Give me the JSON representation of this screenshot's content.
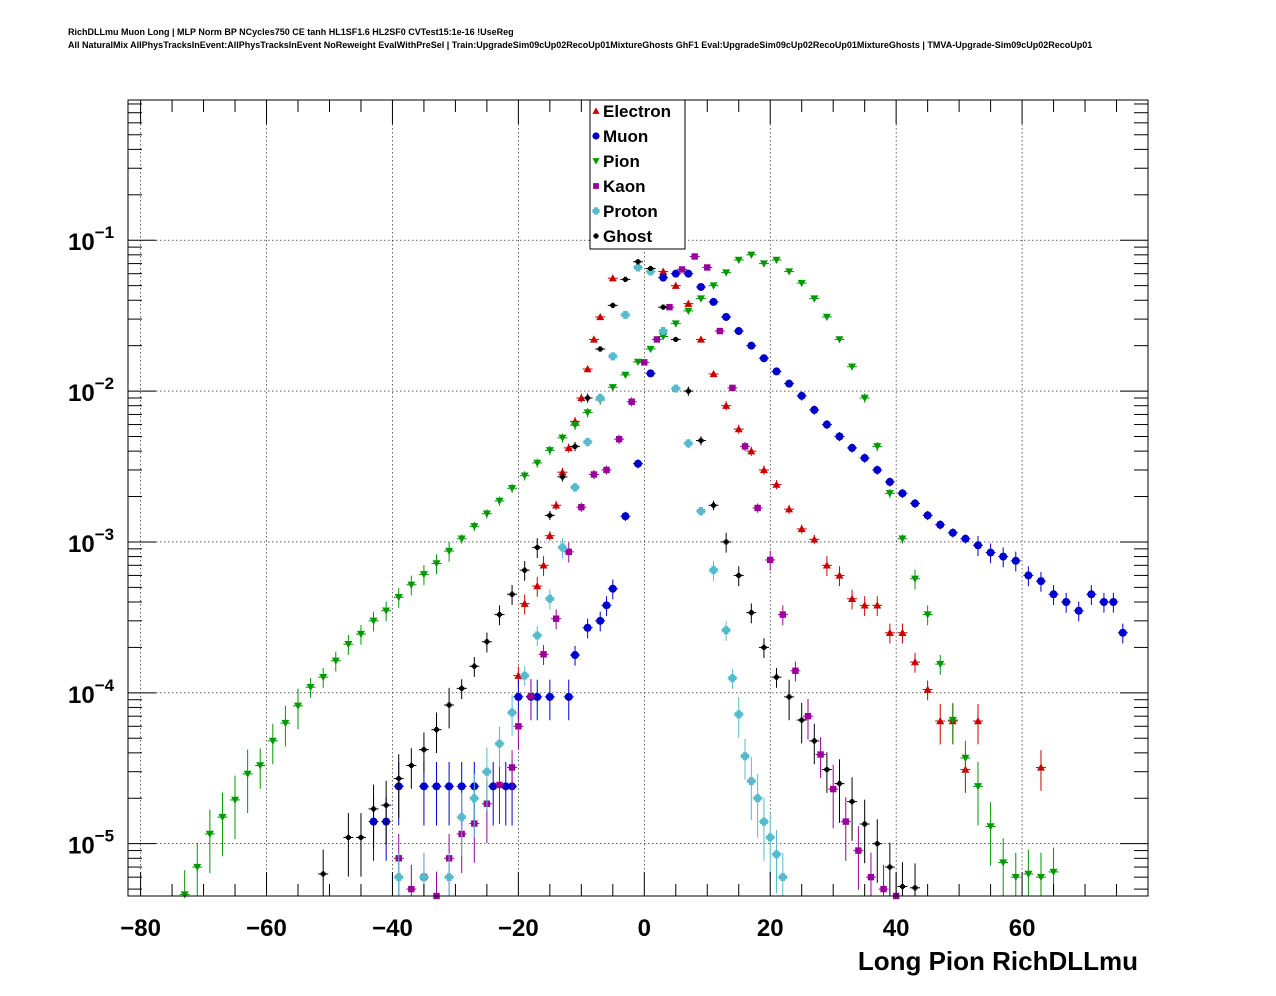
{
  "title_line1": "RichDLLmu Muon Long | MLP Norm BP NCycles750 CE tanh HL1SF1.6 HL2SF0 CVTest15:1e-16 !UseReg",
  "title_line2": "All NaturalMix AllPhysTracksInEvent:AllPhysTracksInEvent NoReweight EvalWithPreSel | Train:UpgradeSim09cUp02RecoUp01MixtureGhosts GhF1 Eval:UpgradeSim09cUp02RecoUp01MixtureGhosts | TMVA-Upgrade-Sim09cUp02RecoUp01",
  "chart_data": {
    "type": "scatter",
    "xlabel": "Long Pion RichDLLmu",
    "ylabel": "",
    "xlim": [
      -82,
      80
    ],
    "ylim": [
      4.5e-06,
      0.85
    ],
    "yscale": "log",
    "grid": true,
    "legend_position": "top-center",
    "x_ticks": [
      -80,
      -60,
      -40,
      -20,
      0,
      20,
      40,
      60
    ],
    "x_tick_labels": [
      "−80",
      "−60",
      "−40",
      "−20",
      "0",
      "20",
      "40",
      "60"
    ],
    "y_ticks": [
      1e-05,
      0.0001,
      0.001,
      0.01,
      0.1
    ],
    "y_tick_labels": [
      {
        "base": "10",
        "exp": "−5"
      },
      {
        "base": "10",
        "exp": "−4"
      },
      {
        "base": "10",
        "exp": "−3"
      },
      {
        "base": "10",
        "exp": "−2"
      },
      {
        "base": "10",
        "exp": "−1"
      }
    ],
    "series": [
      {
        "name": "Electron",
        "marker": "triangle-up",
        "color": "#cc0000",
        "points": [
          [
            -20,
            0.00013
          ],
          [
            -19,
            0.00039
          ],
          [
            -17,
            0.00051
          ],
          [
            -16,
            0.0007
          ],
          [
            -15,
            0.0011
          ],
          [
            -14,
            0.00175
          ],
          [
            -13,
            0.0029
          ],
          [
            -12,
            0.0042
          ],
          [
            -11,
            0.0063
          ],
          [
            -10,
            0.009
          ],
          [
            -9,
            0.014
          ],
          [
            -8,
            0.022
          ],
          [
            -7,
            0.031
          ],
          [
            -5,
            0.056
          ],
          [
            3,
            0.062
          ],
          [
            5,
            0.05
          ],
          [
            7,
            0.038
          ],
          [
            9,
            0.022
          ],
          [
            11,
            0.013
          ],
          [
            13,
            0.008
          ],
          [
            15,
            0.0056
          ],
          [
            17,
            0.004
          ],
          [
            19,
            0.003
          ],
          [
            21,
            0.0024
          ],
          [
            23,
            0.00165
          ],
          [
            25,
            0.00122
          ],
          [
            27,
            0.00104
          ],
          [
            29,
            0.0007
          ],
          [
            31,
            0.0006
          ],
          [
            33,
            0.00042
          ],
          [
            35,
            0.00038
          ],
          [
            37,
            0.00038
          ],
          [
            39,
            0.00025
          ],
          [
            41,
            0.00025
          ],
          [
            43,
            0.00016
          ],
          [
            45,
            0.000105
          ],
          [
            47,
            6.5e-05
          ],
          [
            49,
            6.5e-05
          ],
          [
            51,
            3.1e-05
          ],
          [
            53,
            6.5e-05
          ],
          [
            63,
            3.2e-05
          ]
        ]
      },
      {
        "name": "Muon",
        "marker": "circle",
        "color": "#0000cc",
        "points": [
          [
            -43,
            1.4e-05
          ],
          [
            -41,
            1.4e-05
          ],
          [
            -39,
            2.4e-05
          ],
          [
            -35,
            2.4e-05
          ],
          [
            -33,
            2.4e-05
          ],
          [
            -31,
            2.4e-05
          ],
          [
            -29,
            2.4e-05
          ],
          [
            -27,
            2.4e-05
          ],
          [
            -24,
            2.4e-05
          ],
          [
            -22,
            2.4e-05
          ],
          [
            -21,
            2.4e-05
          ],
          [
            -20,
            9.4e-05
          ],
          [
            -18,
            9.4e-05
          ],
          [
            -17,
            9.4e-05
          ],
          [
            -15,
            9.4e-05
          ],
          [
            -12,
            9.4e-05
          ],
          [
            -11,
            0.000178
          ],
          [
            -9,
            0.00027
          ],
          [
            -7,
            0.0003
          ],
          [
            -6,
            0.00038
          ],
          [
            -5,
            0.00049
          ],
          [
            -3,
            0.00148
          ],
          [
            -1,
            0.0033
          ],
          [
            1,
            0.0131
          ],
          [
            3,
            0.0565
          ],
          [
            5,
            0.06
          ],
          [
            7,
            0.06
          ],
          [
            9,
            0.049
          ],
          [
            11,
            0.039
          ],
          [
            13,
            0.031
          ],
          [
            15,
            0.025
          ],
          [
            17,
            0.02
          ],
          [
            19,
            0.0165
          ],
          [
            21,
            0.0135
          ],
          [
            23,
            0.0112
          ],
          [
            25,
            0.0093
          ],
          [
            27,
            0.0075
          ],
          [
            29,
            0.006
          ],
          [
            31,
            0.005
          ],
          [
            33,
            0.0042
          ],
          [
            35,
            0.0036
          ],
          [
            37,
            0.003
          ],
          [
            39,
            0.0025
          ],
          [
            41,
            0.0021
          ],
          [
            43,
            0.0018
          ],
          [
            45,
            0.0015
          ],
          [
            47,
            0.0013
          ],
          [
            49,
            0.00115
          ],
          [
            51,
            0.00105
          ],
          [
            53,
            0.00095
          ],
          [
            55,
            0.00085
          ],
          [
            57,
            0.0008
          ],
          [
            59,
            0.00075
          ],
          [
            61,
            0.0006
          ],
          [
            63,
            0.00055
          ],
          [
            65,
            0.00045
          ],
          [
            67,
            0.0004
          ],
          [
            69,
            0.00035
          ],
          [
            71,
            0.00045
          ],
          [
            73,
            0.0004
          ],
          [
            74.5,
            0.0004
          ],
          [
            76,
            0.00025
          ]
        ]
      },
      {
        "name": "Pion",
        "marker": "triangle-down",
        "color": "#009900",
        "points": [
          [
            -73,
            4.6e-06
          ],
          [
            -71,
            7e-06
          ],
          [
            -69,
            1.16e-05
          ],
          [
            -67,
            1.5e-05
          ],
          [
            -65,
            1.95e-05
          ],
          [
            -63,
            2.9e-05
          ],
          [
            -61,
            3.3e-05
          ],
          [
            -59,
            4.8e-05
          ],
          [
            -57,
            6.3e-05
          ],
          [
            -55,
            8.2e-05
          ],
          [
            -53,
            0.000109
          ],
          [
            -51,
            0.000127
          ],
          [
            -49,
            0.000163
          ],
          [
            -47,
            0.00021
          ],
          [
            -45,
            0.000245
          ],
          [
            -43,
            0.0003
          ],
          [
            -41,
            0.00035
          ],
          [
            -39,
            0.00043
          ],
          [
            -37,
            0.00052
          ],
          [
            -35,
            0.00061
          ],
          [
            -33,
            0.00072
          ],
          [
            -31,
            0.00087
          ],
          [
            -29,
            0.00105
          ],
          [
            -27,
            0.00127
          ],
          [
            -25,
            0.00154
          ],
          [
            -23,
            0.00187
          ],
          [
            -21,
            0.00227
          ],
          [
            -19,
            0.00275
          ],
          [
            -17,
            0.00334
          ],
          [
            -15,
            0.00405
          ],
          [
            -13,
            0.0049
          ],
          [
            -11,
            0.00594
          ],
          [
            -9,
            0.0072
          ],
          [
            -7,
            0.00873
          ],
          [
            -5,
            0.0106
          ],
          [
            -3,
            0.0128
          ],
          [
            -1,
            0.0156
          ],
          [
            1,
            0.019
          ],
          [
            3,
            0.023
          ],
          [
            5,
            0.028
          ],
          [
            7,
            0.034
          ],
          [
            9,
            0.041
          ],
          [
            11,
            0.05
          ],
          [
            13,
            0.061
          ],
          [
            15,
            0.074
          ],
          [
            17,
            0.08
          ],
          [
            19,
            0.07
          ],
          [
            21,
            0.074
          ],
          [
            23,
            0.062
          ],
          [
            25,
            0.052
          ],
          [
            27,
            0.041
          ],
          [
            29,
            0.031
          ],
          [
            31,
            0.022
          ],
          [
            33,
            0.0145
          ],
          [
            35,
            0.009
          ],
          [
            37,
            0.0043
          ],
          [
            39,
            0.0021
          ],
          [
            41,
            0.00105
          ],
          [
            43,
            0.00057
          ],
          [
            45,
            0.00033
          ],
          [
            47,
            0.000155
          ],
          [
            49,
            6.6e-05
          ],
          [
            51,
            3.7e-05
          ],
          [
            53,
            2.4e-05
          ],
          [
            55,
            1.3e-05
          ],
          [
            57,
            7.5e-06
          ],
          [
            59,
            6e-06
          ],
          [
            61,
            6.3e-06
          ],
          [
            63,
            6e-06
          ],
          [
            65,
            6.5e-06
          ]
        ]
      },
      {
        "name": "Kaon",
        "marker": "square",
        "color": "#990099",
        "points": [
          [
            -39,
            8e-06
          ],
          [
            -37,
            5e-06
          ],
          [
            -35,
            6e-06
          ],
          [
            -33,
            4.5e-06
          ],
          [
            -31,
            8e-06
          ],
          [
            -29,
            1.16e-05
          ],
          [
            -27,
            1.36e-05
          ],
          [
            -25,
            1.84e-05
          ],
          [
            -23,
            2.45e-05
          ],
          [
            -21,
            3.2e-05
          ],
          [
            -20,
            6e-05
          ],
          [
            -18,
            9.5e-05
          ],
          [
            -16,
            0.00018
          ],
          [
            -14,
            0.00031
          ],
          [
            -12,
            0.00086
          ],
          [
            -10,
            0.0017
          ],
          [
            -8,
            0.0028
          ],
          [
            -6,
            0.003
          ],
          [
            -4,
            0.0048
          ],
          [
            -2,
            0.0085
          ],
          [
            0,
            0.0155
          ],
          [
            2,
            0.022
          ],
          [
            4,
            0.036
          ],
          [
            6,
            0.064
          ],
          [
            8,
            0.078
          ],
          [
            10,
            0.066
          ],
          [
            12,
            0.025
          ],
          [
            14,
            0.0105
          ],
          [
            16,
            0.0043
          ],
          [
            18,
            0.00168
          ],
          [
            20,
            0.00076
          ],
          [
            22,
            0.00033
          ],
          [
            24,
            0.00014
          ],
          [
            26,
            7e-05
          ],
          [
            28,
            3.9e-05
          ],
          [
            30,
            2.3e-05
          ],
          [
            32,
            1.4e-05
          ],
          [
            34,
            9e-06
          ],
          [
            36,
            6e-06
          ],
          [
            38,
            5e-06
          ],
          [
            40,
            4.5e-06
          ]
        ]
      },
      {
        "name": "Proton",
        "marker": "cross",
        "color": "#55bbcc",
        "points": [
          [
            -39,
            6e-06
          ],
          [
            -35,
            6e-06
          ],
          [
            -31,
            6e-06
          ],
          [
            -29,
            1.5e-05
          ],
          [
            -27,
            2e-05
          ],
          [
            -25,
            3e-05
          ],
          [
            -23,
            4.6e-05
          ],
          [
            -21,
            7.4e-05
          ],
          [
            -19,
            0.00013
          ],
          [
            -17,
            0.00024
          ],
          [
            -15,
            0.00042
          ],
          [
            -13,
            0.00092
          ],
          [
            -11,
            0.0023
          ],
          [
            -9,
            0.0046
          ],
          [
            -7,
            0.009
          ],
          [
            -5,
            0.017
          ],
          [
            -3,
            0.032
          ],
          [
            -1,
            0.066
          ],
          [
            1,
            0.062
          ],
          [
            3,
            0.025
          ],
          [
            5,
            0.0104
          ],
          [
            7,
            0.0045
          ],
          [
            9,
            0.0016
          ],
          [
            11,
            0.00065
          ],
          [
            13,
            0.00026
          ],
          [
            14,
            0.000125
          ],
          [
            15,
            7.2e-05
          ],
          [
            16,
            3.8e-05
          ],
          [
            17,
            2.6e-05
          ],
          [
            18,
            2e-05
          ],
          [
            19,
            1.4e-05
          ],
          [
            20,
            1.1e-05
          ],
          [
            21,
            8.5e-06
          ],
          [
            22,
            6e-06
          ]
        ]
      },
      {
        "name": "Ghost",
        "marker": "cross",
        "color": "#000000",
        "points": [
          [
            -51,
            6.3e-06
          ],
          [
            -47,
            1.1e-05
          ],
          [
            -45,
            1.1e-05
          ],
          [
            -43,
            1.7e-05
          ],
          [
            -41,
            1.8e-05
          ],
          [
            -39,
            2.7e-05
          ],
          [
            -37,
            3.3e-05
          ],
          [
            -35,
            4.2e-05
          ],
          [
            -33,
            5.7e-05
          ],
          [
            -31,
            8.3e-05
          ],
          [
            -29,
            0.000107
          ],
          [
            -27,
            0.00015
          ],
          [
            -25,
            0.000218
          ],
          [
            -23,
            0.00033
          ],
          [
            -21,
            0.00045
          ],
          [
            -19,
            0.00065
          ],
          [
            -17,
            0.00092
          ],
          [
            -15,
            0.0015
          ],
          [
            -13,
            0.0027
          ],
          [
            -11,
            0.0043
          ],
          [
            -9,
            0.009
          ],
          [
            -7,
            0.019
          ],
          [
            -5,
            0.037
          ],
          [
            -3,
            0.055
          ],
          [
            -1,
            0.072
          ],
          [
            1,
            0.065
          ],
          [
            3,
            0.036
          ],
          [
            5,
            0.022
          ],
          [
            7,
            0.01
          ],
          [
            9,
            0.0047
          ],
          [
            11,
            0.00175
          ],
          [
            13,
            0.001
          ],
          [
            15,
            0.0006
          ],
          [
            17,
            0.00034
          ],
          [
            19,
            0.0002
          ],
          [
            21,
            0.000127
          ],
          [
            23,
            9.4e-05
          ],
          [
            25,
            6.6e-05
          ],
          [
            27,
            4.8e-05
          ],
          [
            29,
            3.1e-05
          ],
          [
            31,
            2.5e-05
          ],
          [
            33,
            1.9e-05
          ],
          [
            35,
            1.35e-05
          ],
          [
            37,
            1e-05
          ],
          [
            39,
            7e-06
          ],
          [
            41,
            5.2e-06
          ],
          [
            43,
            5.1e-06
          ]
        ]
      }
    ]
  }
}
